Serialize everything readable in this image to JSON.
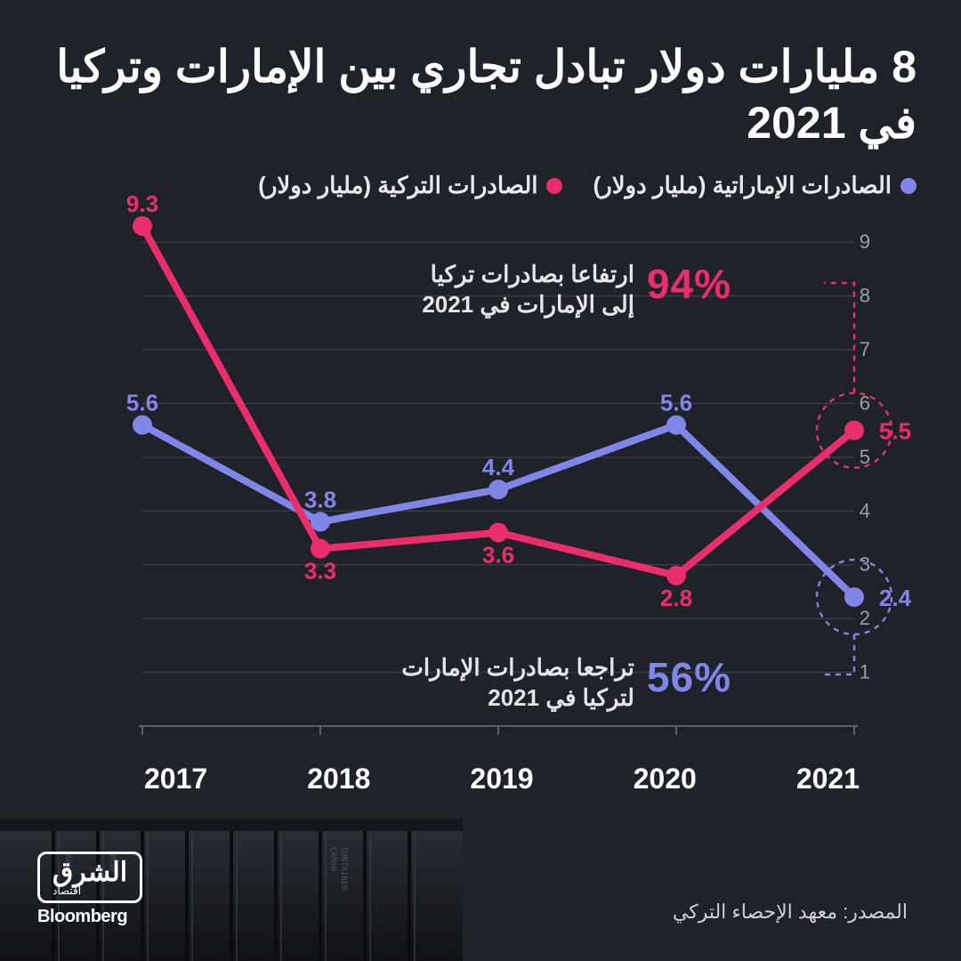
{
  "colors": {
    "background": "#1f2228",
    "text": "#ffffff",
    "muted_text": "#9aa0a8",
    "grid": "#3a3e46",
    "axis": "#5a5f68",
    "series_uae": "#8085e8",
    "series_turkey": "#ea2e6c"
  },
  "title": "8 مليارات دولار تبادل تجاري بين الإمارات وتركيا في 2021",
  "legend": {
    "uae": "الصادرات الإماراتية (مليار دولار)",
    "turkey": "الصادرات التركية (مليار دولار)"
  },
  "chart": {
    "type": "line",
    "ylim": [
      0,
      9.5
    ],
    "yticks": [
      1,
      2,
      3,
      4,
      5,
      6,
      7,
      8,
      9
    ],
    "categories": [
      "2017",
      "2018",
      "2019",
      "2020",
      "2021"
    ],
    "series": {
      "uae": {
        "values": [
          5.6,
          3.8,
          4.4,
          5.6,
          2.4
        ],
        "color": "#8085e8",
        "line_width": 8,
        "marker_radius": 11
      },
      "turkey": {
        "values": [
          9.3,
          3.3,
          3.6,
          2.8,
          5.5
        ],
        "color": "#ea2e6c",
        "line_width": 8,
        "marker_radius": 11
      }
    },
    "label_fontsize": 26,
    "tick_fontsize": 22,
    "xaxis_fontsize": 32,
    "grid_color": "#3a3e46",
    "background_color": "#1f2228",
    "highlight": {
      "uae_2021": {
        "circle_r": 42
      },
      "turkey_2021": {
        "circle_r": 42
      }
    }
  },
  "callouts": {
    "turkey": {
      "pct": "94%",
      "desc_line1": "ارتفاعا بصادرات تركيا",
      "desc_line2": "إلى الإمارات في 2021",
      "color": "#ea2e6c"
    },
    "uae": {
      "pct": "56%",
      "desc_line1": "تراجعا بصادرات الإمارات",
      "desc_line2": "لتركيا في 2021",
      "color": "#8085e8"
    }
  },
  "source": "المصدر: معهد الإحصاء التركي",
  "logo": {
    "brand_ar": "الشرق",
    "brand_sub": "اقتصاد",
    "partner": "Bloomberg"
  }
}
